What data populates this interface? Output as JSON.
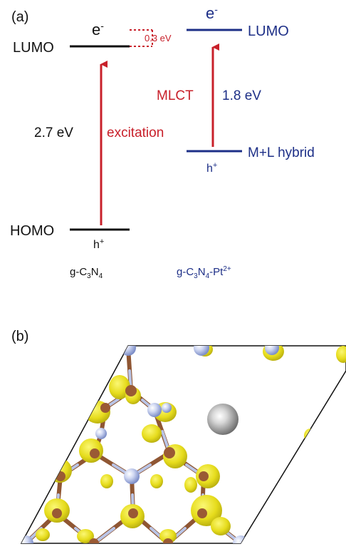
{
  "panel_a": {
    "label": "(a)",
    "left": {
      "lumo_label": "LUMO",
      "homo_label": "HOMO",
      "electron": "e",
      "electron_sup": "-",
      "hole": "h",
      "hole_sup": "+",
      "gap": "2.7 eV",
      "transition": "excitation",
      "material": {
        "a": "g-C",
        "b": "3",
        "c": "N",
        "d": "4"
      }
    },
    "right": {
      "lumo_label": "LUMO",
      "hybrid_label": "M+L hybrid",
      "electron": "e",
      "electron_sup": "-",
      "hole": "h",
      "hole_sup": "+",
      "transition": "MLCT",
      "gap": "1.8 eV",
      "material": {
        "a": "g-C",
        "b": "3",
        "c": "N",
        "d": "4",
        "e": "-Pt",
        "f": "2+"
      }
    },
    "offset": "0.3 eV",
    "colors": {
      "black": "#111111",
      "red": "#c8202a",
      "blue": "#1d2f87"
    }
  },
  "panel_b": {
    "label": "(b)",
    "colors": {
      "nitrogen": "#b9c4e6",
      "carbon": "#9a5a34",
      "platinum": "#8a8a8a",
      "density": "#e8e021",
      "cell": "#111111"
    }
  }
}
